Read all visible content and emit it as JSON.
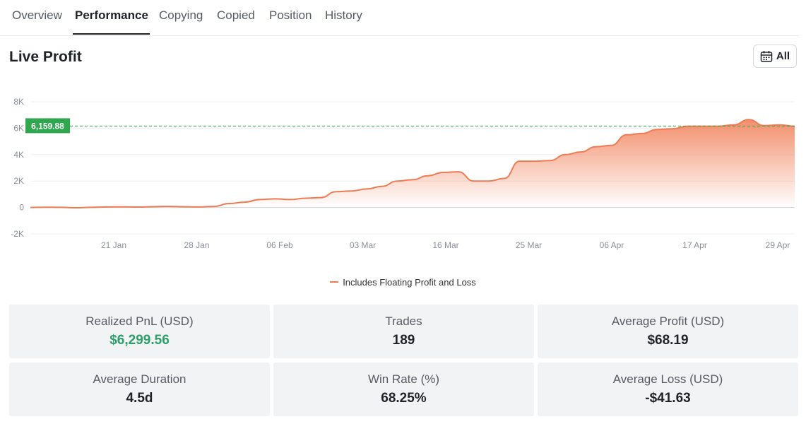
{
  "tabs": [
    {
      "label": "Overview"
    },
    {
      "label": "Performance",
      "active": true
    },
    {
      "label": "Copying"
    },
    {
      "label": "Copied"
    },
    {
      "label": "Position"
    },
    {
      "label": "History"
    }
  ],
  "section_title": "Live Profit",
  "range_button": {
    "label": "All",
    "icon": "calendar-icon"
  },
  "colors": {
    "line": "#f07b52",
    "current_marker": "#2ea74f",
    "positive": "#2e9e6b"
  },
  "chart_data": {
    "type": "area",
    "title": "",
    "xlabel": "",
    "ylabel": "",
    "ylim": [
      -2000,
      8000
    ],
    "y_ticks": [
      8000,
      6000,
      4000,
      2000,
      0,
      -2000
    ],
    "y_tick_labels": [
      "8K",
      "6K",
      "4K",
      "2K",
      "0",
      "-2K"
    ],
    "x_tick_labels": [
      "21 Jan",
      "28 Jan",
      "06 Feb",
      "03 Mar",
      "16 Mar",
      "25 Mar",
      "06 Apr",
      "17 Apr",
      "29 Apr"
    ],
    "current_value": 6159.88,
    "current_value_label": "6,159.88",
    "grid": true,
    "legend_position": "bottom-center",
    "series": [
      {
        "name": "Includes Floating Profit and Loss",
        "values": [
          0,
          20,
          10,
          -20,
          10,
          40,
          50,
          30,
          60,
          80,
          60,
          40,
          80,
          300,
          400,
          600,
          650,
          600,
          700,
          750,
          1200,
          1250,
          1400,
          1600,
          2000,
          2100,
          2400,
          2650,
          2700,
          2000,
          2000,
          2200,
          3500,
          3500,
          3550,
          4000,
          4200,
          4600,
          4700,
          5500,
          5600,
          5900,
          5950,
          6150,
          6150,
          6150,
          6250,
          6650,
          6200,
          6250,
          6150
        ]
      }
    ]
  },
  "stats": [
    {
      "label": "Realized PnL (USD)",
      "value": "$6,299.56",
      "positive": true
    },
    {
      "label": "Trades",
      "value": "189"
    },
    {
      "label": "Average Profit (USD)",
      "value": "$68.19"
    },
    {
      "label": "Average Duration",
      "value": "4.5d"
    },
    {
      "label": "Win Rate (%)",
      "value": "68.25%"
    },
    {
      "label": "Average Loss (USD)",
      "value": "-$41.63"
    }
  ]
}
